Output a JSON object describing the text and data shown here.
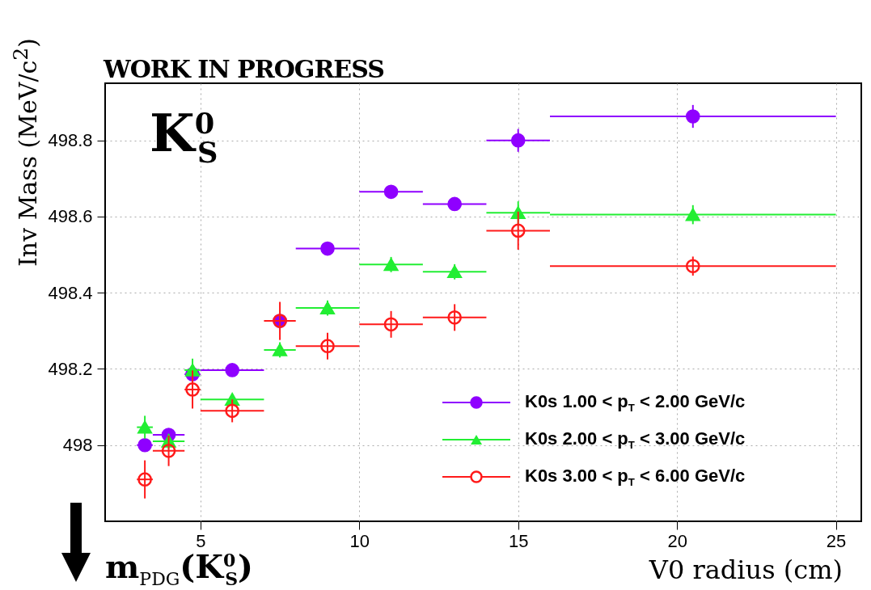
{
  "chart_data": {
    "type": "scatter",
    "xlabel": "V0 radius (cm)",
    "ylabel": "Inv Mass (MeV/c$^{2}$)",
    "annotations": [
      "WORK IN PROGRESS",
      "K$^{0}$$_{S}$",
      "m$_{PDG}$(K$^{0}$$_{S}$)"
    ],
    "x": [
      3.25,
      4,
      4.75,
      6,
      7.5,
      9,
      11,
      13,
      15,
      20.5
    ],
    "series": [
      {
        "name": "K0s 1.00 < p$_{T}$ < 2.00 GeV/c",
        "color": "#8f00ff",
        "marker": "circle",
        "values": [
          498.0,
          498.027,
          498.186,
          498.197,
          498.326,
          498.516,
          498.665,
          498.633,
          498.8,
          498.863
        ],
        "errors": [
          0.01,
          0.008,
          0.01,
          0.006,
          null,
          0.01,
          0.015,
          0.015,
          0.03,
          0.03
        ],
        "xerrors": [
          0.25,
          0.5,
          0.25,
          1,
          null,
          1,
          1,
          1,
          1,
          4.5
        ]
      },
      {
        "name": "K0s 2.00 < p$_{T}$ < 3.00 GeV/c",
        "color": "#22ee33",
        "marker": "triangle",
        "values": [
          498.047,
          498.01,
          498.197,
          498.12,
          498.25,
          498.36,
          498.474,
          498.455,
          498.61,
          498.605
        ],
        "errors": [
          0.03,
          0.02,
          0.03,
          0.015,
          0.02,
          0.02,
          0.02,
          0.02,
          0.03,
          0.025
        ],
        "xerrors": [
          0.25,
          0.5,
          0.25,
          1,
          0.5,
          1,
          1,
          1,
          1,
          4.5
        ]
      },
      {
        "name": "K0s 3.00 < p$_{T}$ < 6.00 GeV/c",
        "color": "#ff1a1a",
        "marker": "circle",
        "values": [
          497.91,
          497.985,
          498.146,
          498.09,
          498.326,
          498.26,
          498.317,
          498.335,
          498.563,
          498.47
        ],
        "errors": [
          0.05,
          0.04,
          0.05,
          0.03,
          0.05,
          0.035,
          0.035,
          0.035,
          0.05,
          0.025
        ],
        "xerrors": [
          0.25,
          0.5,
          0.25,
          1,
          0.5,
          1,
          1,
          1,
          1,
          4.5
        ]
      }
    ],
    "xlim": [
      2,
      25.8
    ],
    "ylim": [
      497.8,
      498.95
    ],
    "xticks": [
      5,
      10,
      15,
      20,
      25
    ],
    "yticks": [
      {
        "value": 498,
        "label": "498"
      },
      498.2,
      498.4,
      498.6,
      498.8
    ],
    "grid": true,
    "legend": "bottom right"
  }
}
